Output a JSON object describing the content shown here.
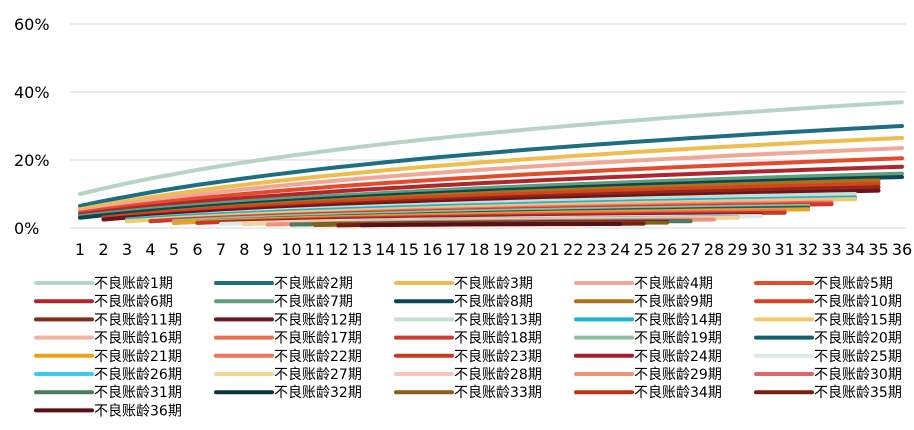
{
  "chart_data": {
    "type": "line",
    "title": "",
    "xlabel": "",
    "ylabel": "",
    "x": [
      1,
      2,
      3,
      4,
      5,
      6,
      7,
      8,
      9,
      10,
      11,
      12,
      13,
      14,
      15,
      16,
      17,
      18,
      19,
      20,
      21,
      22,
      23,
      24,
      25,
      26,
      27,
      28,
      29,
      30,
      31,
      32,
      33,
      34,
      35,
      36
    ],
    "y_range": [
      0,
      60
    ],
    "y_ticks": [
      "0%",
      "20%",
      "40%",
      "60%"
    ],
    "y_tick_values": [
      0,
      20,
      40,
      60
    ],
    "grid": "horizontal",
    "legend_position": "bottom",
    "series": [
      {
        "name": "不良账龄1期",
        "start": 1,
        "final": 37,
        "initial": 10,
        "color": "#b7d3c3",
        "width": 4
      },
      {
        "name": "不良账龄2期",
        "start": 1,
        "final": 30,
        "initial": 6.5,
        "color": "#1d6e80",
        "width": 4
      },
      {
        "name": "不良账龄3期",
        "start": 1,
        "final": 26.5,
        "initial": 5.5,
        "color": "#efbd4d",
        "width": 4
      },
      {
        "name": "不良账龄4期",
        "start": 1,
        "final": 23.5,
        "initial": 5,
        "color": "#f2a796",
        "width": 4
      },
      {
        "name": "不良账龄5期",
        "start": 1,
        "final": 20.5,
        "initial": 4.5,
        "color": "#e44b2b",
        "width": 4
      },
      {
        "name": "不良账龄6期",
        "start": 1,
        "final": 18,
        "initial": 4,
        "color": "#b1262e",
        "width": 4
      },
      {
        "name": "不良账龄7期",
        "start": 1,
        "final": 16,
        "initial": 3.5,
        "color": "#5f9e7d",
        "width": 4
      },
      {
        "name": "不良账龄8期",
        "start": 1,
        "final": 15,
        "initial": 3,
        "color": "#0e4552",
        "width": 4
      },
      {
        "name": "不良账龄9期",
        "start": 2,
        "final": 14,
        "initial": 3,
        "color": "#a8741a",
        "width": 4
      },
      {
        "name": "不良账龄10期",
        "start": 2,
        "final": 13,
        "initial": 3,
        "color": "#d9401c",
        "width": 4
      },
      {
        "name": "不良账龄11期",
        "start": 2,
        "final": 12,
        "initial": 2.5,
        "color": "#8a2a19",
        "width": 4
      },
      {
        "name": "不良账龄12期",
        "start": 2,
        "final": 11,
        "initial": 2.5,
        "color": "#6d1420",
        "width": 4
      },
      {
        "name": "不良账龄13期",
        "start": 3,
        "final": 10,
        "initial": 2.5,
        "color": "#c7dfd2",
        "width": 4
      },
      {
        "name": "不良账龄14期",
        "start": 3,
        "final": 9,
        "initial": 2.5,
        "color": "#1bb3d6",
        "width": 4
      },
      {
        "name": "不良账龄15期",
        "start": 3,
        "final": 8.5,
        "initial": 2,
        "color": "#f5c968",
        "width": 4
      },
      {
        "name": "不良账龄16期",
        "start": 4,
        "final": 8,
        "initial": 2,
        "color": "#f3b3a0",
        "width": 4
      },
      {
        "name": "不良账龄17期",
        "start": 4,
        "final": 7.5,
        "initial": 2,
        "color": "#ee6f4e",
        "width": 4
      },
      {
        "name": "不良账龄18期",
        "start": 4,
        "final": 7,
        "initial": 2,
        "color": "#cc3a30",
        "width": 4
      },
      {
        "name": "不良账龄19期",
        "start": 5,
        "final": 6.5,
        "initial": 2,
        "color": "#8cc0a3",
        "width": 4
      },
      {
        "name": "不良账龄20期",
        "start": 5,
        "final": 6,
        "initial": 1.5,
        "color": "#12606e",
        "width": 4
      },
      {
        "name": "不良账龄21期",
        "start": 5,
        "final": 5.5,
        "initial": 1.5,
        "color": "#eea21c",
        "width": 4
      },
      {
        "name": "不良账龄22期",
        "start": 6,
        "final": 5,
        "initial": 1.5,
        "color": "#f27358",
        "width": 4
      },
      {
        "name": "不良账龄23期",
        "start": 6,
        "final": 4.5,
        "initial": 1.5,
        "color": "#c73a22",
        "width": 4
      },
      {
        "name": "不良账龄24期",
        "start": 7,
        "final": 4,
        "initial": 1.5,
        "color": "#a21f2a",
        "width": 4
      },
      {
        "name": "不良账龄25期",
        "start": 7,
        "final": 3.5,
        "initial": 1.2,
        "color": "#d9ebe2",
        "width": 4
      },
      {
        "name": "不良账龄26期",
        "start": 8,
        "final": 3.2,
        "initial": 1.2,
        "color": "#3ccbea",
        "width": 4
      },
      {
        "name": "不良账龄27期",
        "start": 8,
        "final": 3,
        "initial": 1.2,
        "color": "#f4d396",
        "width": 4
      },
      {
        "name": "不良账龄28期",
        "start": 9,
        "final": 2.8,
        "initial": 1,
        "color": "#f6c6bd",
        "width": 4
      },
      {
        "name": "不良账龄29期",
        "start": 9,
        "final": 2.5,
        "initial": 1,
        "color": "#ee927c",
        "width": 4
      },
      {
        "name": "不良账龄30期",
        "start": 10,
        "final": 2.2,
        "initial": 1,
        "color": "#de676a",
        "width": 4
      },
      {
        "name": "不良账龄31期",
        "start": 10,
        "final": 2,
        "initial": 1,
        "color": "#4a7a60",
        "width": 4
      },
      {
        "name": "不良账龄32期",
        "start": 11,
        "final": 1.8,
        "initial": 0.9,
        "color": "#0a3440",
        "width": 4
      },
      {
        "name": "不良账龄33期",
        "start": 11,
        "final": 1.6,
        "initial": 0.9,
        "color": "#8a5e12",
        "width": 4
      },
      {
        "name": "不良账龄34期",
        "start": 12,
        "final": 1.5,
        "initial": 0.8,
        "color": "#bb3415",
        "width": 4
      },
      {
        "name": "不良账龄35期",
        "start": 12,
        "final": 1.3,
        "initial": 0.8,
        "color": "#7a1e10",
        "width": 4
      },
      {
        "name": "不良账龄36期",
        "start": 13,
        "final": 1.2,
        "initial": 0.8,
        "color": "#5a0f14",
        "width": 4
      }
    ]
  }
}
